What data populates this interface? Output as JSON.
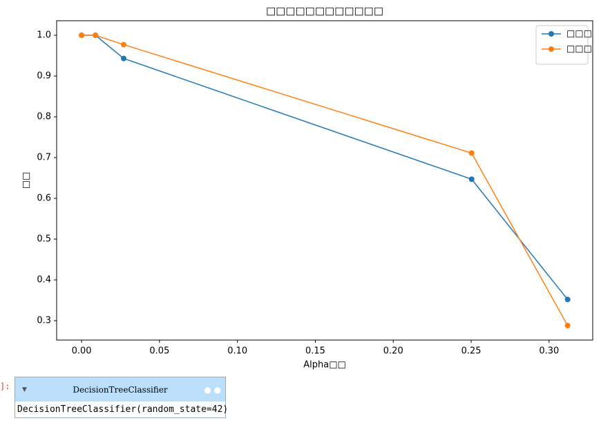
{
  "chart_data": {
    "type": "line",
    "title": "□□□□□□□□□□□□",
    "xlabel": "Alpha□□",
    "ylabel": "□□",
    "x": [
      0,
      0.0089,
      0.027,
      0.2503,
      0.3119
    ],
    "series": [
      {
        "name": "□□□",
        "color": "#1f77b4",
        "values": [
          1.0,
          1.0,
          0.943,
          0.647,
          0.352
        ]
      },
      {
        "name": "□□□",
        "color": "#ff7f0e",
        "values": [
          1.0,
          1.0,
          0.977,
          0.711,
          0.288
        ]
      }
    ],
    "xlim": [
      -0.016,
      0.328
    ],
    "ylim": [
      0.2525,
      1.0356
    ],
    "xticks": [
      {
        "value": 0,
        "label": "0.00"
      },
      0.05,
      {
        "value": 0.1,
        "label": "0.10"
      },
      0.15,
      {
        "value": 0.2,
        "label": "0.20"
      },
      0.25,
      {
        "value": 0.3,
        "label": "0.30"
      }
    ],
    "yticks": [
      0.3,
      0.4,
      0.5,
      0.6,
      0.7,
      0.8,
      0.9,
      {
        "value": 1,
        "label": "1.0"
      }
    ],
    "legend": "upper right",
    "grid": false
  },
  "output_prompt": "]:",
  "widget": {
    "title": "DecisionTreeClassifier",
    "repr": "DecisionTreeClassifier(random_state=42)"
  }
}
